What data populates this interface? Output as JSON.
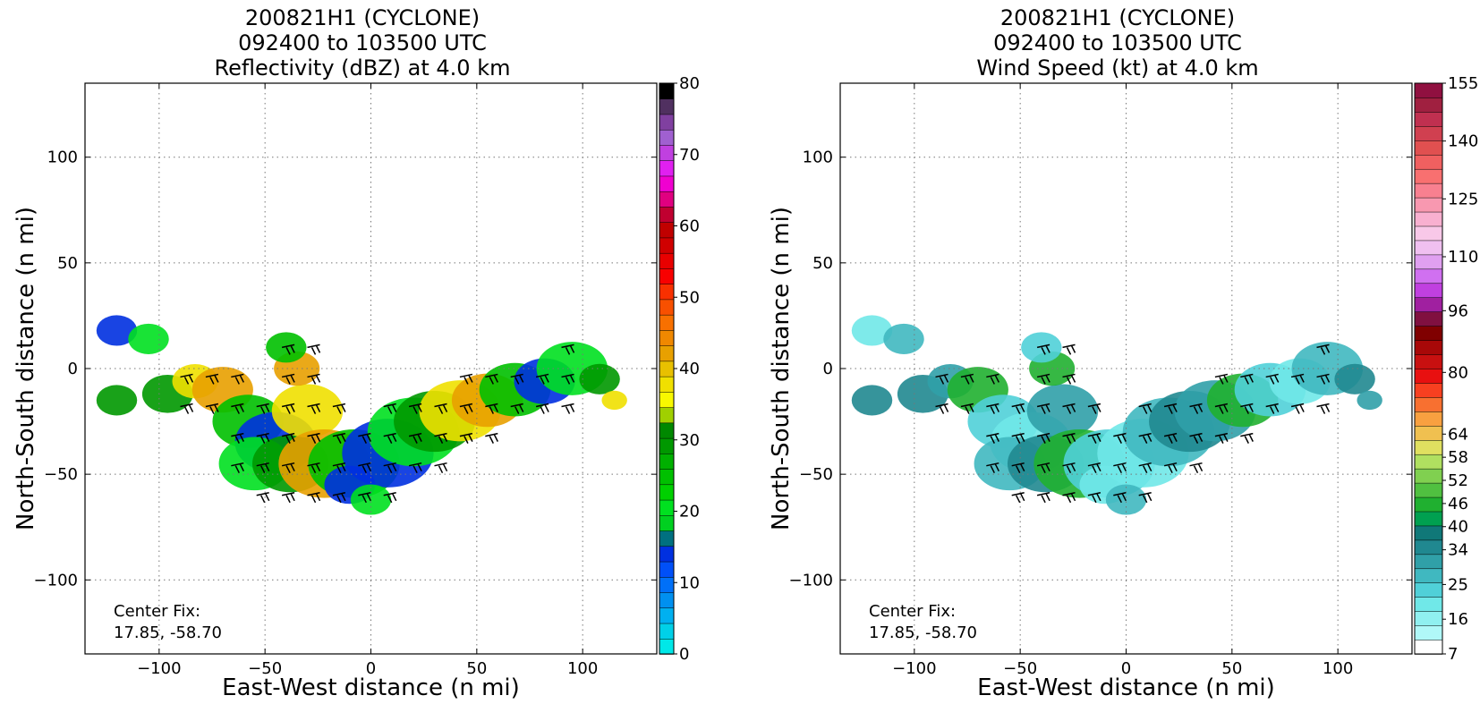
{
  "panels": [
    {
      "title_lines": [
        "200821H1 (CYCLONE)",
        "092400 to 103500 UTC",
        "Reflectivity (dBZ) at 4.0 km"
      ],
      "xlabel": "East-West distance (n mi)",
      "ylabel": "North-South distance (n mi)",
      "xticks": [
        "−100",
        "−50",
        "0",
        "50",
        "100"
      ],
      "yticks": [
        "100",
        "50",
        "0",
        "−50",
        "−100"
      ],
      "center_fix_label": "Center Fix:",
      "center_fix_value": "17.85, -58.70",
      "colorbar_ticks": [
        "80",
        "70",
        "60",
        "50",
        "40",
        "30",
        "20",
        "10",
        "0"
      ]
    },
    {
      "title_lines": [
        "200821H1 (CYCLONE)",
        "092400 to 103500 UTC",
        "Wind Speed (kt) at 4.0 km"
      ],
      "xlabel": "East-West distance (n mi)",
      "ylabel": "North-South distance (n mi)",
      "xticks": [
        "−100",
        "−50",
        "0",
        "50",
        "100"
      ],
      "yticks": [
        "100",
        "50",
        "0",
        "−50",
        "−100"
      ],
      "center_fix_label": "Center Fix:",
      "center_fix_value": "17.85, -58.70",
      "colorbar_ticks": [
        "155",
        "140",
        "125",
        "110",
        "96",
        "80",
        "64",
        "58",
        "52",
        "46",
        "40",
        "34",
        "25",
        "16",
        "7"
      ]
    }
  ],
  "chart_data": [
    {
      "type": "heatmap",
      "title": "200821H1 (CYCLONE) 092400 to 103500 UTC Reflectivity (dBZ) at 4.0 km",
      "xlabel": "East-West distance (n mi)",
      "ylabel": "North-South distance (n mi)",
      "xlim": [
        -135,
        135
      ],
      "ylim": [
        -135,
        135
      ],
      "grid": true,
      "colorbar": {
        "label_values": [
          0,
          10,
          20,
          30,
          40,
          50,
          60,
          70,
          80
        ],
        "colors": [
          "#00e8e8",
          "#00d0e8",
          "#00b0f0",
          "#0090f0",
          "#0070f8",
          "#0050f8",
          "#0030e0",
          "#007080",
          "#00d020",
          "#00e020",
          "#00d000",
          "#00c000",
          "#00b000",
          "#009800",
          "#008800",
          "#a0d000",
          "#f8f800",
          "#f0e000",
          "#e8c000",
          "#e8a000",
          "#f08800",
          "#f87000",
          "#f85000",
          "#f83000",
          "#f80000",
          "#e80000",
          "#d00000",
          "#c00000",
          "#c00030",
          "#e00080",
          "#f000d0",
          "#e020f0",
          "#c040e0",
          "#a060d0",
          "#8040a0",
          "#503060",
          "#000000"
        ]
      },
      "wind_barbs": true,
      "center_fix": [
        17.85,
        -58.7
      ]
    },
    {
      "type": "heatmap",
      "title": "200821H1 (CYCLONE) 092400 to 103500 UTC Wind Speed (kt) at 4.0 km",
      "xlabel": "East-West distance (n mi)",
      "ylabel": "North-South distance (n mi)",
      "xlim": [
        -135,
        135
      ],
      "ylim": [
        -135,
        135
      ],
      "grid": true,
      "colorbar": {
        "label_values": [
          7,
          16,
          25,
          34,
          40,
          46,
          52,
          58,
          64,
          80,
          96,
          110,
          125,
          140,
          155
        ],
        "colors": [
          "#ffffff",
          "#b0f8f8",
          "#90f0f0",
          "#70e8e8",
          "#50d0d8",
          "#40b8c0",
          "#30a0a8",
          "#208890",
          "#107878",
          "#00a050",
          "#20b030",
          "#50c040",
          "#80d050",
          "#b0e060",
          "#e0e060",
          "#f0c050",
          "#f8a040",
          "#f87030",
          "#f84020",
          "#e81010",
          "#c81010",
          "#a80808",
          "#800000",
          "#801040",
          "#a020a0",
          "#c040e0",
          "#d070f0",
          "#e0a0f0",
          "#f0c0f0",
          "#f8c8e8",
          "#f8b0d0",
          "#f898b0",
          "#f88090",
          "#f87070",
          "#f06060",
          "#e05050",
          "#d04050",
          "#c03050",
          "#a02040",
          "#901040"
        ]
      },
      "wind_barbs": true,
      "center_fix": [
        17.85,
        -58.7
      ]
    }
  ]
}
